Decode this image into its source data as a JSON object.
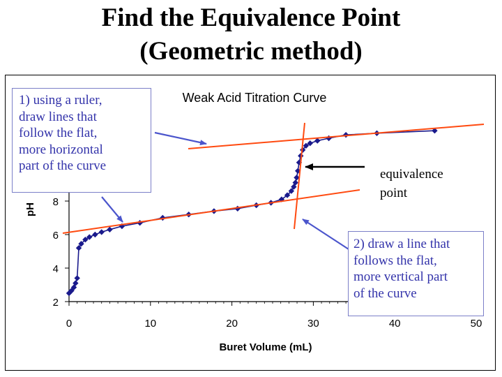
{
  "slide": {
    "title_line1": "Find the Equivalence Point",
    "title_line2": "(Geometric method)"
  },
  "callouts": {
    "ruler": [
      "1) using a ruler,",
      "draw lines that",
      "follow the flat,",
      "more horizontal",
      "part of the curve"
    ],
    "vertical": [
      "2) draw a line that",
      "follows the flat,",
      "more vertical part",
      "of the curve"
    ],
    "equivalence": [
      "equivalence",
      "point"
    ]
  },
  "colors": {
    "curve": "#1a1a8c",
    "markers": "#1a1a8c",
    "construction_lines": "#ff4a10",
    "callout_text": "#3333aa",
    "callout_border": "#7b7fc8",
    "callout_arrows": "#4b55cc",
    "equivalence_arrow": "#000000"
  },
  "chart_data": {
    "type": "scatter",
    "title": "Weak Acid Titration Curve",
    "xlabel": "Buret Volume (mL)",
    "ylabel": "pH",
    "xlim": [
      0,
      50
    ],
    "ylim": [
      2,
      14
    ],
    "x_ticks": [
      0,
      10,
      20,
      30,
      40,
      50
    ],
    "y_ticks": [
      2,
      4,
      6,
      8
    ],
    "grid": false,
    "legend": "none",
    "series": [
      {
        "marker": "diamond",
        "line": "smooth",
        "points": [
          [
            0,
            2.5
          ],
          [
            0.3,
            2.65
          ],
          [
            0.6,
            2.85
          ],
          [
            0.8,
            3.1
          ],
          [
            1.0,
            3.4
          ],
          [
            1.2,
            5.2
          ],
          [
            1.5,
            5.45
          ],
          [
            2.0,
            5.7
          ],
          [
            2.5,
            5.85
          ],
          [
            3.2,
            6.0
          ],
          [
            4.0,
            6.15
          ],
          [
            5.0,
            6.3
          ],
          [
            6.5,
            6.5
          ],
          [
            8.7,
            6.7
          ],
          [
            11.5,
            7.0
          ],
          [
            14.7,
            7.2
          ],
          [
            17.8,
            7.4
          ],
          [
            20.7,
            7.55
          ],
          [
            23.0,
            7.75
          ],
          [
            24.8,
            7.9
          ],
          [
            26.1,
            8.1
          ],
          [
            26.8,
            8.35
          ],
          [
            27.3,
            8.6
          ],
          [
            27.6,
            8.85
          ],
          [
            27.8,
            9.1
          ],
          [
            27.95,
            9.4
          ],
          [
            28.1,
            9.8
          ],
          [
            28.25,
            10.3
          ],
          [
            28.45,
            10.7
          ],
          [
            28.7,
            11.05
          ],
          [
            29.1,
            11.3
          ],
          [
            29.6,
            11.45
          ],
          [
            30.5,
            11.6
          ],
          [
            31.9,
            11.75
          ],
          [
            34.0,
            11.95
          ],
          [
            37.8,
            12.05
          ],
          [
            44.9,
            12.2
          ]
        ]
      }
    ]
  }
}
